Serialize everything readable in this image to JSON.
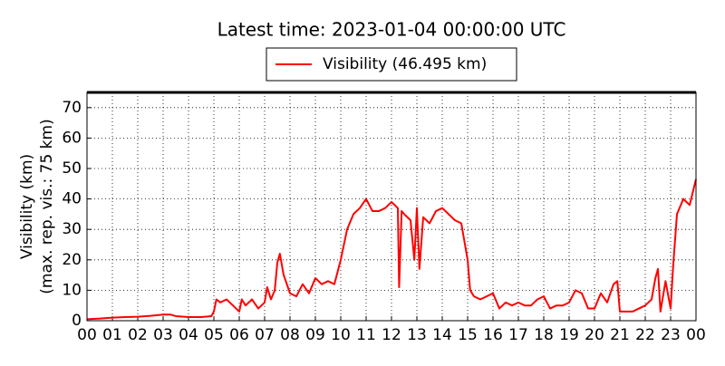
{
  "chart_data": {
    "type": "line",
    "title": "Latest time: 2023-01-04 00:00:00 UTC",
    "ylabel": [
      "Visibility (km)",
      "(max. rep. vis.: 75 km)"
    ],
    "xlim": [
      0,
      24
    ],
    "ylim": [
      0,
      75
    ],
    "xticks": [
      {
        "value": 0,
        "label": "00"
      },
      {
        "value": 1,
        "label": "01"
      },
      {
        "value": 2,
        "label": "02"
      },
      {
        "value": 3,
        "label": "03"
      },
      {
        "value": 4,
        "label": "04"
      },
      {
        "value": 5,
        "label": "05"
      },
      {
        "value": 6,
        "label": "06"
      },
      {
        "value": 7,
        "label": "07"
      },
      {
        "value": 8,
        "label": "08"
      },
      {
        "value": 9,
        "label": "09"
      },
      {
        "value": 10,
        "label": "10"
      },
      {
        "value": 11,
        "label": "11"
      },
      {
        "value": 12,
        "label": "12"
      },
      {
        "value": 13,
        "label": "13"
      },
      {
        "value": 14,
        "label": "14"
      },
      {
        "value": 15,
        "label": "15"
      },
      {
        "value": 16,
        "label": "16"
      },
      {
        "value": 17,
        "label": "17"
      },
      {
        "value": 18,
        "label": "18"
      },
      {
        "value": 19,
        "label": "19"
      },
      {
        "value": 20,
        "label": "20"
      },
      {
        "value": 21,
        "label": "21"
      },
      {
        "value": 22,
        "label": "22"
      },
      {
        "value": 23,
        "label": "23"
      },
      {
        "value": 24,
        "label": "00"
      }
    ],
    "yticks": [
      0,
      10,
      20,
      30,
      40,
      50,
      60,
      70
    ],
    "grid": true,
    "legend": "top",
    "x": [
      0,
      0.5,
      1,
      1.5,
      2,
      2.5,
      3,
      3.3,
      3.5,
      4,
      4.5,
      4.9,
      5.0,
      5.1,
      5.25,
      5.5,
      5.75,
      6,
      6.1,
      6.25,
      6.5,
      6.75,
      7,
      7.1,
      7.25,
      7.4,
      7.5,
      7.6,
      7.75,
      8,
      8.25,
      8.5,
      8.75,
      9,
      9.25,
      9.5,
      9.75,
      10,
      10.25,
      10.5,
      10.75,
      11,
      11.25,
      11.5,
      11.75,
      12,
      12.25,
      12.3,
      12.4,
      12.5,
      12.75,
      12.9,
      13,
      13.1,
      13.25,
      13.5,
      13.75,
      14,
      14.25,
      14.5,
      14.75,
      15,
      15.1,
      15.25,
      15.5,
      15.75,
      16,
      16.25,
      16.5,
      16.75,
      17,
      17.25,
      17.5,
      17.75,
      18,
      18.25,
      18.5,
      18.75,
      19,
      19.25,
      19.5,
      19.75,
      20,
      20.25,
      20.5,
      20.75,
      20.9,
      21,
      21.25,
      21.5,
      21.75,
      22,
      22.25,
      22.4,
      22.5,
      22.6,
      22.8,
      23,
      23.1,
      23.25,
      23.5,
      23.75,
      24
    ],
    "series": [
      {
        "name": "Visibility (46.495 km)",
        "color": "#ff0000",
        "values": [
          0.5,
          0.7,
          1,
          1.2,
          1.3,
          1.6,
          2,
          2,
          1.5,
          1.2,
          1.2,
          1.5,
          3,
          7,
          6,
          7,
          5,
          3,
          7,
          5,
          7,
          4,
          6,
          11,
          7,
          10,
          19,
          22,
          15,
          9,
          8,
          12,
          9,
          14,
          12,
          13,
          12,
          20,
          30,
          35,
          37,
          40,
          36,
          36,
          37,
          39,
          37,
          11,
          36,
          35,
          33,
          20,
          37,
          17,
          34,
          32,
          36,
          37,
          35,
          33,
          32,
          20,
          10,
          8,
          7,
          8,
          9,
          4,
          6,
          5,
          6,
          5,
          5,
          7,
          8,
          4,
          5,
          5,
          6,
          10,
          9,
          4,
          4,
          9,
          6,
          12,
          13,
          3,
          3,
          3,
          4,
          5,
          7,
          14,
          17,
          3,
          13,
          4,
          18,
          35,
          40,
          38,
          46.495
        ]
      }
    ]
  }
}
